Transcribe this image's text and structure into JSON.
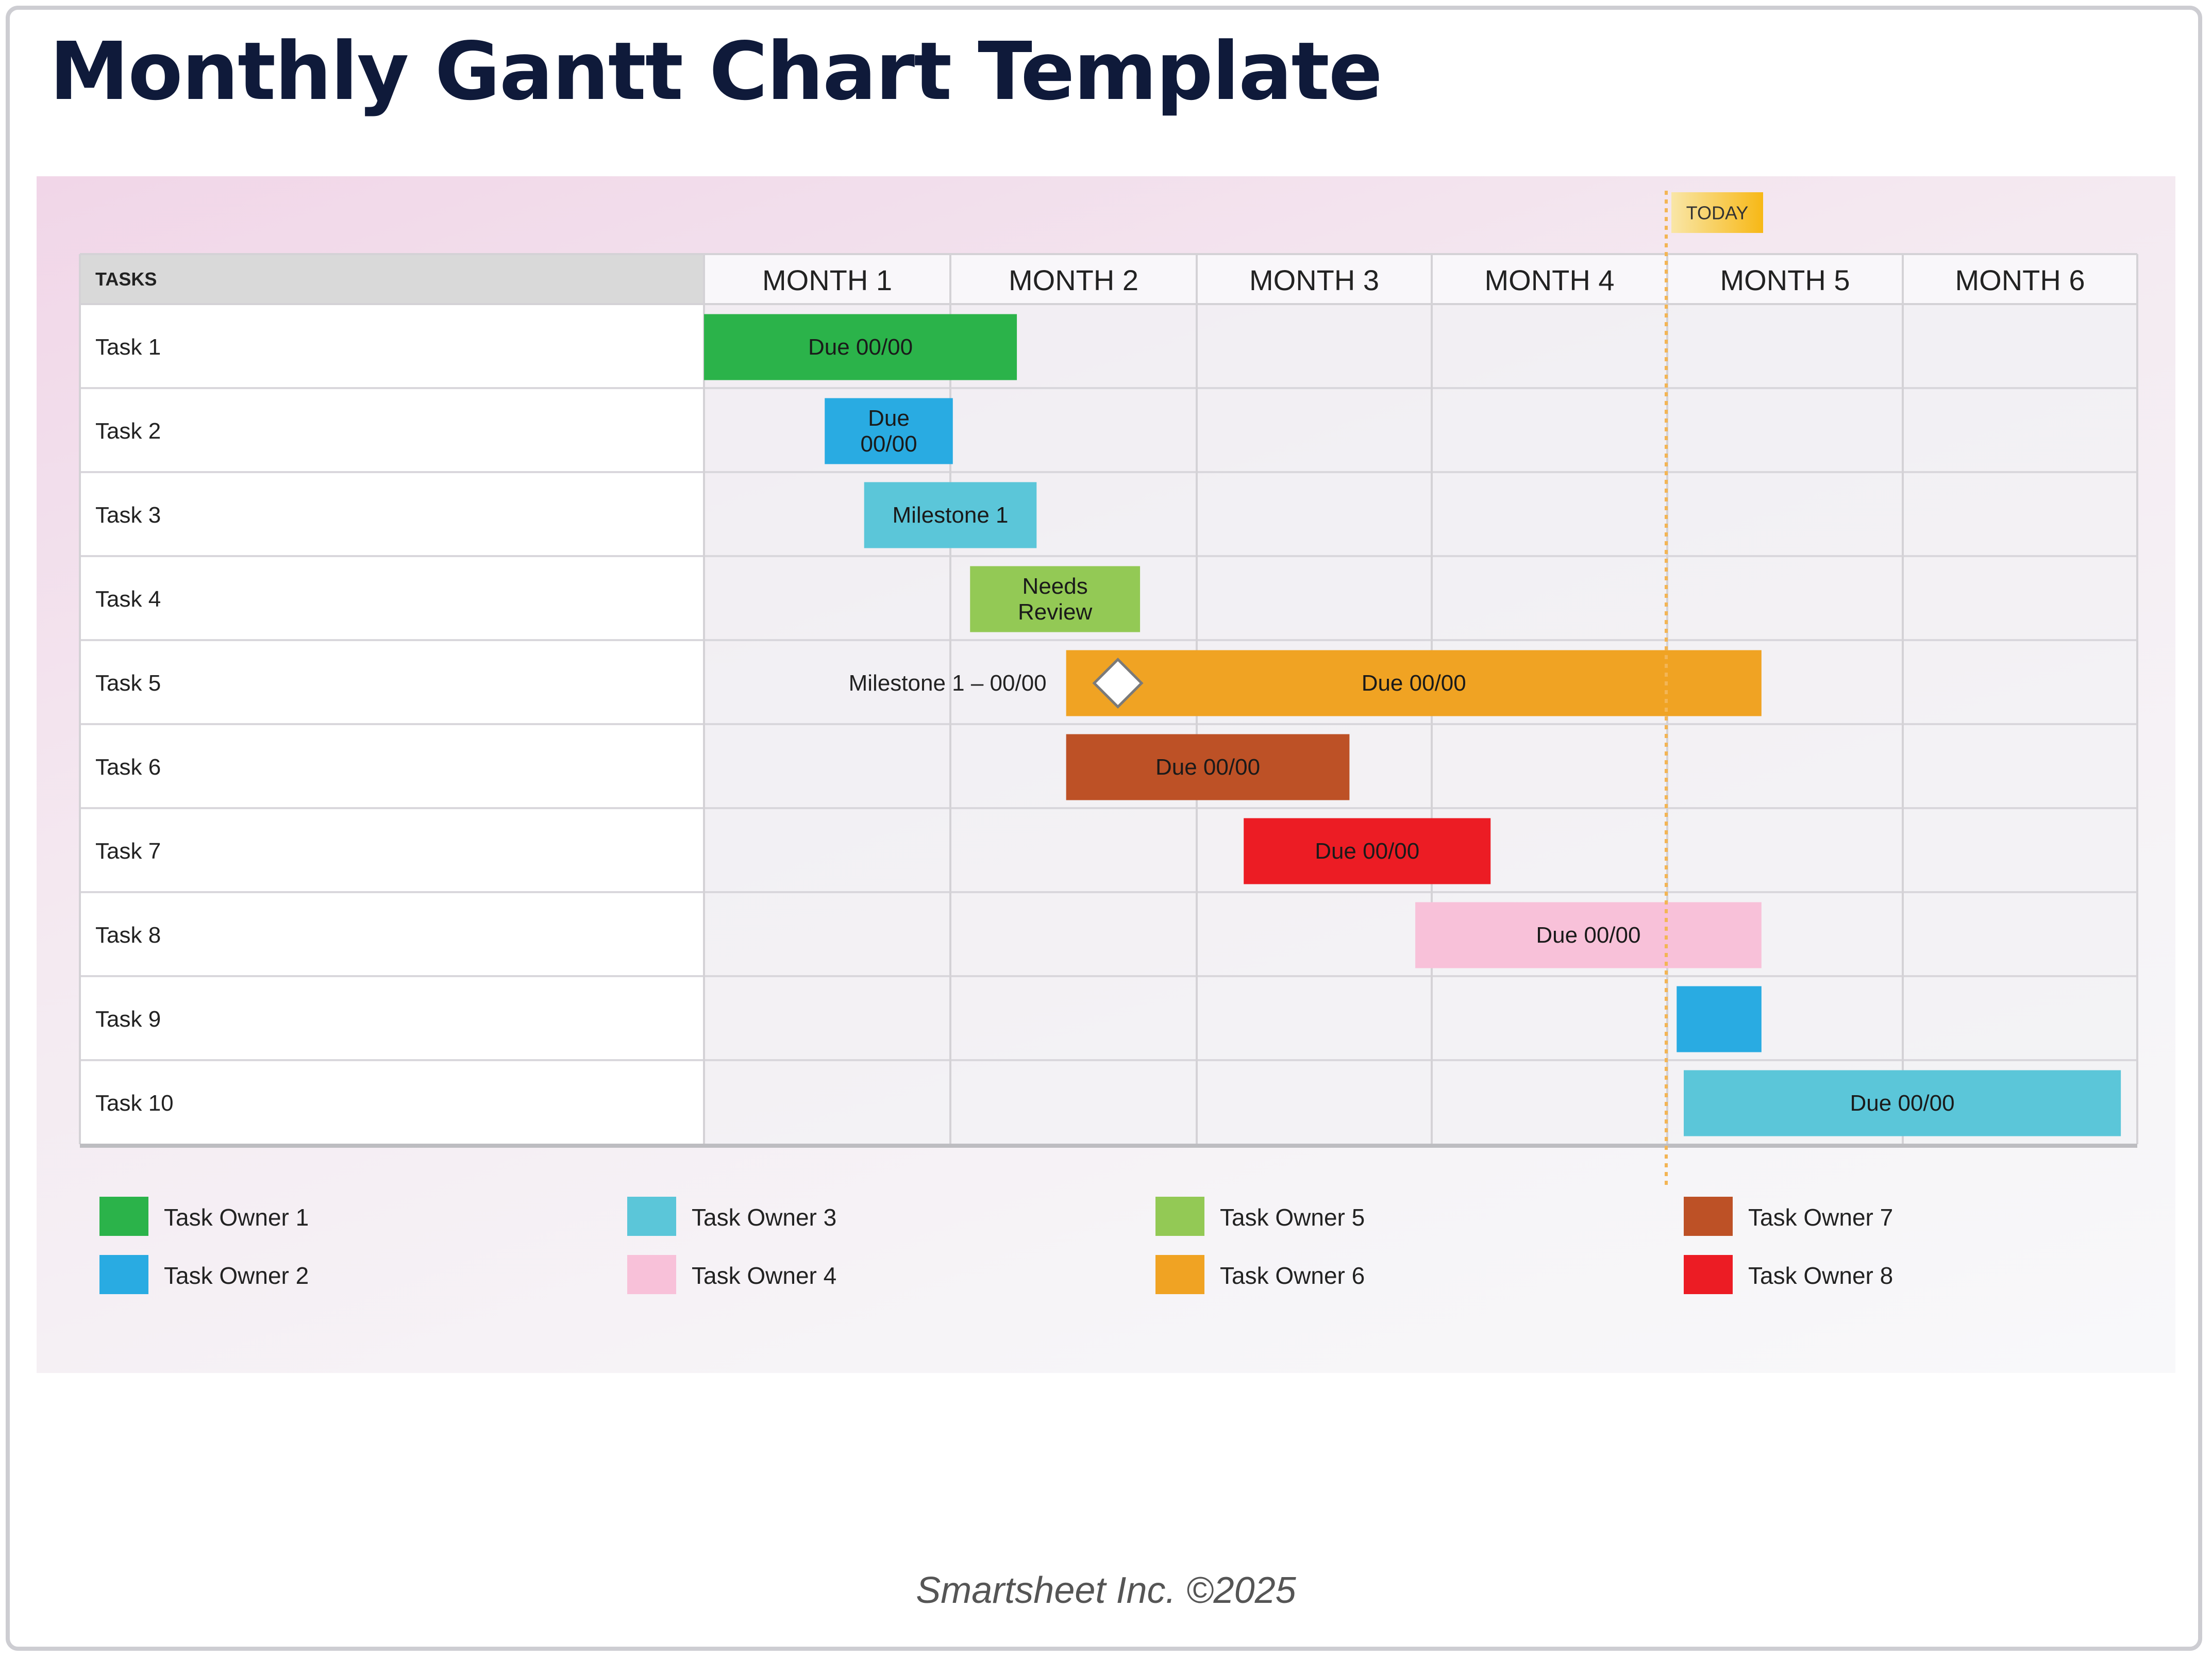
{
  "page": {
    "title": "Monthly Gantt Chart Template",
    "footer": "Smartsheet Inc. ©2025"
  },
  "chart_data": {
    "type": "gantt",
    "task_column_header": "TASKS",
    "months": [
      "MONTH 1",
      "MONTH 2",
      "MONTH 3",
      "MONTH 4",
      "MONTH 5",
      "MONTH 6"
    ],
    "today": {
      "label": "TODAY",
      "month_position": 4.0
    },
    "tasks": [
      {
        "name": "Task 1",
        "start": 0.0,
        "end": 1.27,
        "label": [
          "Due 00/00"
        ],
        "owner": 1
      },
      {
        "name": "Task 2",
        "start": 0.49,
        "end": 1.01,
        "label": [
          "Due",
          "00/00"
        ],
        "owner": 2
      },
      {
        "name": "Task 3",
        "start": 0.65,
        "end": 1.35,
        "label": [
          "Milestone 1"
        ],
        "owner": 3
      },
      {
        "name": "Task 4",
        "start": 1.08,
        "end": 1.77,
        "label": [
          "Needs",
          "Review"
        ],
        "owner": 5
      },
      {
        "name": "Task 5",
        "start": 1.47,
        "end": 4.4,
        "label": [
          "Due 00/00"
        ],
        "owner": 6,
        "milestone": {
          "label": "Milestone 1 – 00/00",
          "position": 1.68
        }
      },
      {
        "name": "Task 6",
        "start": 1.47,
        "end": 2.65,
        "label": [
          "Due 00/00"
        ],
        "owner": 7
      },
      {
        "name": "Task 7",
        "start": 2.2,
        "end": 3.25,
        "label": [
          "Due 00/00"
        ],
        "owner": 8
      },
      {
        "name": "Task 8",
        "start": 2.93,
        "end": 4.4,
        "label": [
          "Due 00/00"
        ],
        "owner": 4
      },
      {
        "name": "Task 9",
        "start": 4.04,
        "end": 4.4,
        "label": [],
        "owner": 2
      },
      {
        "name": "Task 10",
        "start": 4.07,
        "end": 5.93,
        "label": [
          "Due 00/00"
        ],
        "owner": 3
      }
    ],
    "legend": [
      {
        "owner": 1,
        "name": "Task Owner 1",
        "color": "#2bb34a"
      },
      {
        "owner": 2,
        "name": "Task Owner 2",
        "color": "#29abe2"
      },
      {
        "owner": 3,
        "name": "Task Owner 3",
        "color": "#5bc6d9"
      },
      {
        "owner": 4,
        "name": "Task Owner 4",
        "color": "#f8c1d9"
      },
      {
        "owner": 5,
        "name": "Task Owner 5",
        "color": "#93c955"
      },
      {
        "owner": 6,
        "name": "Task Owner 6",
        "color": "#f0a323"
      },
      {
        "owner": 7,
        "name": "Task Owner 7",
        "color": "#bd5126"
      },
      {
        "owner": 8,
        "name": "Task Owner 8",
        "color": "#ec1c24"
      }
    ]
  }
}
